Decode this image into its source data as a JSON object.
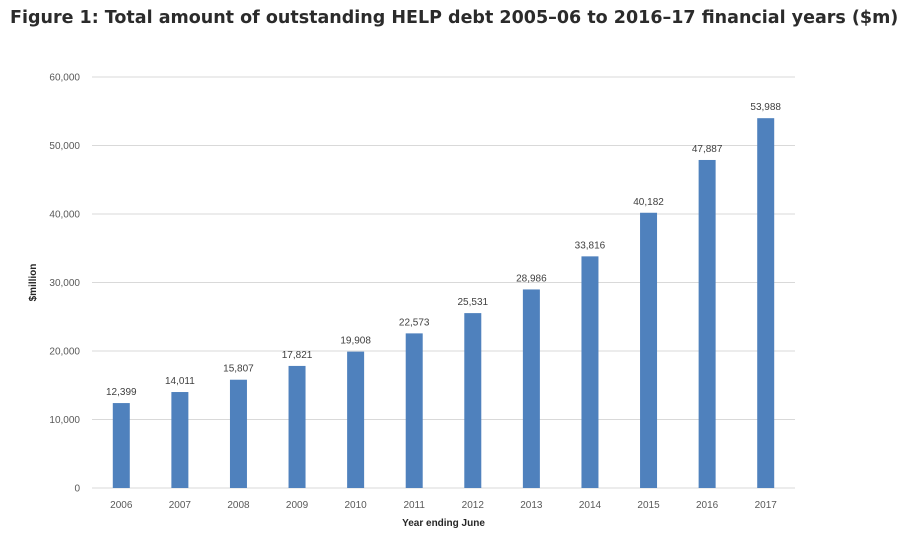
{
  "title": "Figure 1: Total amount of outstanding HELP debt 2005–06 to 2016–17 financial years ($m)",
  "chart_data": {
    "type": "bar",
    "categories": [
      "2006",
      "2007",
      "2008",
      "2009",
      "2010",
      "2011",
      "2012",
      "2013",
      "2014",
      "2015",
      "2016",
      "2017"
    ],
    "values": [
      12399,
      14011,
      15807,
      17821,
      19908,
      22573,
      25531,
      28986,
      33816,
      40182,
      47887,
      53988
    ],
    "data_labels": [
      "12,399",
      "14,011",
      "15,807",
      "17,821",
      "19,908",
      "22,573",
      "25,531",
      "28,986",
      "33,816",
      "40,182",
      "47,887",
      "53,988"
    ],
    "ylim": [
      0,
      60000
    ],
    "yticks": [
      0,
      10000,
      20000,
      30000,
      40000,
      50000,
      60000
    ],
    "ytick_labels": [
      "0",
      "10,000",
      "20,000",
      "30,000",
      "40,000",
      "50,000",
      "60,000"
    ],
    "xlabel": "Year ending June",
    "ylabel": "$million",
    "grid": true,
    "legend": "none",
    "bar_color": "#4f81bd",
    "grid_color": "#d9d9d9"
  }
}
